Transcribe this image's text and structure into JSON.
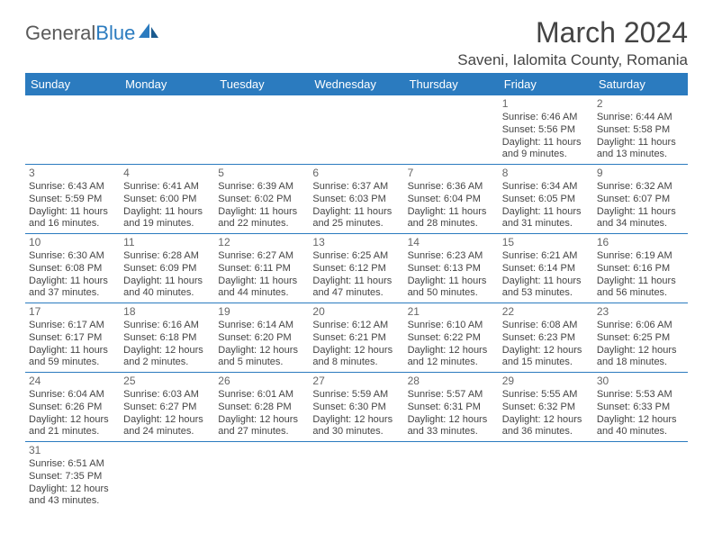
{
  "logo": {
    "text1": "General",
    "text2": "Blue"
  },
  "title": "March 2024",
  "location": "Saveni, Ialomita County, Romania",
  "days": [
    "Sunday",
    "Monday",
    "Tuesday",
    "Wednesday",
    "Thursday",
    "Friday",
    "Saturday"
  ],
  "colors": {
    "header_bg": "#2b7bbf",
    "header_text": "#ffffff",
    "text": "#444444",
    "border": "#2b7bbf"
  },
  "weeks": [
    [
      null,
      null,
      null,
      null,
      null,
      {
        "n": "1",
        "sunrise": "Sunrise: 6:46 AM",
        "sunset": "Sunset: 5:56 PM",
        "day1": "Daylight: 11 hours",
        "day2": "and 9 minutes."
      },
      {
        "n": "2",
        "sunrise": "Sunrise: 6:44 AM",
        "sunset": "Sunset: 5:58 PM",
        "day1": "Daylight: 11 hours",
        "day2": "and 13 minutes."
      }
    ],
    [
      {
        "n": "3",
        "sunrise": "Sunrise: 6:43 AM",
        "sunset": "Sunset: 5:59 PM",
        "day1": "Daylight: 11 hours",
        "day2": "and 16 minutes."
      },
      {
        "n": "4",
        "sunrise": "Sunrise: 6:41 AM",
        "sunset": "Sunset: 6:00 PM",
        "day1": "Daylight: 11 hours",
        "day2": "and 19 minutes."
      },
      {
        "n": "5",
        "sunrise": "Sunrise: 6:39 AM",
        "sunset": "Sunset: 6:02 PM",
        "day1": "Daylight: 11 hours",
        "day2": "and 22 minutes."
      },
      {
        "n": "6",
        "sunrise": "Sunrise: 6:37 AM",
        "sunset": "Sunset: 6:03 PM",
        "day1": "Daylight: 11 hours",
        "day2": "and 25 minutes."
      },
      {
        "n": "7",
        "sunrise": "Sunrise: 6:36 AM",
        "sunset": "Sunset: 6:04 PM",
        "day1": "Daylight: 11 hours",
        "day2": "and 28 minutes."
      },
      {
        "n": "8",
        "sunrise": "Sunrise: 6:34 AM",
        "sunset": "Sunset: 6:05 PM",
        "day1": "Daylight: 11 hours",
        "day2": "and 31 minutes."
      },
      {
        "n": "9",
        "sunrise": "Sunrise: 6:32 AM",
        "sunset": "Sunset: 6:07 PM",
        "day1": "Daylight: 11 hours",
        "day2": "and 34 minutes."
      }
    ],
    [
      {
        "n": "10",
        "sunrise": "Sunrise: 6:30 AM",
        "sunset": "Sunset: 6:08 PM",
        "day1": "Daylight: 11 hours",
        "day2": "and 37 minutes."
      },
      {
        "n": "11",
        "sunrise": "Sunrise: 6:28 AM",
        "sunset": "Sunset: 6:09 PM",
        "day1": "Daylight: 11 hours",
        "day2": "and 40 minutes."
      },
      {
        "n": "12",
        "sunrise": "Sunrise: 6:27 AM",
        "sunset": "Sunset: 6:11 PM",
        "day1": "Daylight: 11 hours",
        "day2": "and 44 minutes."
      },
      {
        "n": "13",
        "sunrise": "Sunrise: 6:25 AM",
        "sunset": "Sunset: 6:12 PM",
        "day1": "Daylight: 11 hours",
        "day2": "and 47 minutes."
      },
      {
        "n": "14",
        "sunrise": "Sunrise: 6:23 AM",
        "sunset": "Sunset: 6:13 PM",
        "day1": "Daylight: 11 hours",
        "day2": "and 50 minutes."
      },
      {
        "n": "15",
        "sunrise": "Sunrise: 6:21 AM",
        "sunset": "Sunset: 6:14 PM",
        "day1": "Daylight: 11 hours",
        "day2": "and 53 minutes."
      },
      {
        "n": "16",
        "sunrise": "Sunrise: 6:19 AM",
        "sunset": "Sunset: 6:16 PM",
        "day1": "Daylight: 11 hours",
        "day2": "and 56 minutes."
      }
    ],
    [
      {
        "n": "17",
        "sunrise": "Sunrise: 6:17 AM",
        "sunset": "Sunset: 6:17 PM",
        "day1": "Daylight: 11 hours",
        "day2": "and 59 minutes."
      },
      {
        "n": "18",
        "sunrise": "Sunrise: 6:16 AM",
        "sunset": "Sunset: 6:18 PM",
        "day1": "Daylight: 12 hours",
        "day2": "and 2 minutes."
      },
      {
        "n": "19",
        "sunrise": "Sunrise: 6:14 AM",
        "sunset": "Sunset: 6:20 PM",
        "day1": "Daylight: 12 hours",
        "day2": "and 5 minutes."
      },
      {
        "n": "20",
        "sunrise": "Sunrise: 6:12 AM",
        "sunset": "Sunset: 6:21 PM",
        "day1": "Daylight: 12 hours",
        "day2": "and 8 minutes."
      },
      {
        "n": "21",
        "sunrise": "Sunrise: 6:10 AM",
        "sunset": "Sunset: 6:22 PM",
        "day1": "Daylight: 12 hours",
        "day2": "and 12 minutes."
      },
      {
        "n": "22",
        "sunrise": "Sunrise: 6:08 AM",
        "sunset": "Sunset: 6:23 PM",
        "day1": "Daylight: 12 hours",
        "day2": "and 15 minutes."
      },
      {
        "n": "23",
        "sunrise": "Sunrise: 6:06 AM",
        "sunset": "Sunset: 6:25 PM",
        "day1": "Daylight: 12 hours",
        "day2": "and 18 minutes."
      }
    ],
    [
      {
        "n": "24",
        "sunrise": "Sunrise: 6:04 AM",
        "sunset": "Sunset: 6:26 PM",
        "day1": "Daylight: 12 hours",
        "day2": "and 21 minutes."
      },
      {
        "n": "25",
        "sunrise": "Sunrise: 6:03 AM",
        "sunset": "Sunset: 6:27 PM",
        "day1": "Daylight: 12 hours",
        "day2": "and 24 minutes."
      },
      {
        "n": "26",
        "sunrise": "Sunrise: 6:01 AM",
        "sunset": "Sunset: 6:28 PM",
        "day1": "Daylight: 12 hours",
        "day2": "and 27 minutes."
      },
      {
        "n": "27",
        "sunrise": "Sunrise: 5:59 AM",
        "sunset": "Sunset: 6:30 PM",
        "day1": "Daylight: 12 hours",
        "day2": "and 30 minutes."
      },
      {
        "n": "28",
        "sunrise": "Sunrise: 5:57 AM",
        "sunset": "Sunset: 6:31 PM",
        "day1": "Daylight: 12 hours",
        "day2": "and 33 minutes."
      },
      {
        "n": "29",
        "sunrise": "Sunrise: 5:55 AM",
        "sunset": "Sunset: 6:32 PM",
        "day1": "Daylight: 12 hours",
        "day2": "and 36 minutes."
      },
      {
        "n": "30",
        "sunrise": "Sunrise: 5:53 AM",
        "sunset": "Sunset: 6:33 PM",
        "day1": "Daylight: 12 hours",
        "day2": "and 40 minutes."
      }
    ],
    [
      {
        "n": "31",
        "sunrise": "Sunrise: 6:51 AM",
        "sunset": "Sunset: 7:35 PM",
        "day1": "Daylight: 12 hours",
        "day2": "and 43 minutes."
      },
      null,
      null,
      null,
      null,
      null,
      null
    ]
  ]
}
